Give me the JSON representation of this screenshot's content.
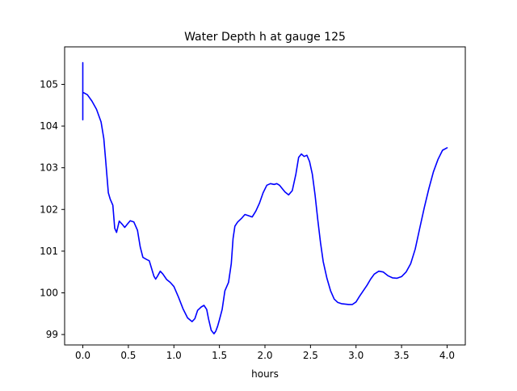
{
  "chart_data": {
    "type": "line",
    "title": "Water Depth h at gauge 125",
    "xlabel": "hours",
    "ylabel": "",
    "xlim": [
      -0.2,
      4.2
    ],
    "ylim": [
      98.75,
      105.9
    ],
    "xticks": [
      0.0,
      0.5,
      1.0,
      1.5,
      2.0,
      2.5,
      3.0,
      3.5,
      4.0
    ],
    "xtick_labels": [
      "0.0",
      "0.5",
      "1.0",
      "1.5",
      "2.0",
      "2.5",
      "3.0",
      "3.5",
      "4.0"
    ],
    "yticks": [
      99,
      100,
      101,
      102,
      103,
      104,
      105
    ],
    "ytick_labels": [
      "99",
      "100",
      "101",
      "102",
      "103",
      "104",
      "105"
    ],
    "grid": false,
    "series": [
      {
        "color": "#0000ff",
        "x": [
          0.0,
          0.0,
          0.0,
          0.0,
          0.01,
          0.05,
          0.1,
          0.15,
          0.2,
          0.23,
          0.25,
          0.28,
          0.3,
          0.33,
          0.35,
          0.37,
          0.4,
          0.43,
          0.46,
          0.49,
          0.52,
          0.56,
          0.6,
          0.63,
          0.66,
          0.7,
          0.73,
          0.76,
          0.78,
          0.8,
          0.82,
          0.85,
          0.88,
          0.92,
          0.96,
          1.0,
          1.05,
          1.1,
          1.15,
          1.2,
          1.23,
          1.26,
          1.3,
          1.33,
          1.36,
          1.38,
          1.41,
          1.44,
          1.46,
          1.48,
          1.5,
          1.53,
          1.56,
          1.6,
          1.63,
          1.65,
          1.67,
          1.7,
          1.74,
          1.78,
          1.82,
          1.86,
          1.9,
          1.94,
          1.98,
          2.02,
          2.06,
          2.1,
          2.13,
          2.16,
          2.19,
          2.22,
          2.26,
          2.3,
          2.34,
          2.37,
          2.4,
          2.43,
          2.46,
          2.49,
          2.52,
          2.55,
          2.58,
          2.61,
          2.64,
          2.68,
          2.72,
          2.76,
          2.8,
          2.84,
          2.88,
          2.92,
          2.96,
          3.0,
          3.04,
          3.08,
          3.12,
          3.16,
          3.2,
          3.25,
          3.3,
          3.35,
          3.4,
          3.45,
          3.5,
          3.55,
          3.6,
          3.65,
          3.7,
          3.75,
          3.8,
          3.85,
          3.9,
          3.95,
          4.0
        ],
        "y": [
          104.15,
          105.52,
          104.15,
          104.8,
          104.8,
          104.75,
          104.6,
          104.4,
          104.1,
          103.7,
          103.2,
          102.4,
          102.25,
          102.1,
          101.55,
          101.45,
          101.72,
          101.65,
          101.57,
          101.65,
          101.73,
          101.7,
          101.5,
          101.1,
          100.85,
          100.8,
          100.77,
          100.55,
          100.4,
          100.33,
          100.4,
          100.52,
          100.45,
          100.32,
          100.25,
          100.15,
          99.9,
          99.62,
          99.4,
          99.31,
          99.38,
          99.58,
          99.66,
          99.7,
          99.6,
          99.38,
          99.1,
          99.02,
          99.08,
          99.2,
          99.35,
          99.6,
          100.05,
          100.25,
          100.7,
          101.3,
          101.6,
          101.7,
          101.78,
          101.88,
          101.85,
          101.82,
          101.96,
          102.15,
          102.4,
          102.58,
          102.62,
          102.6,
          102.62,
          102.58,
          102.5,
          102.42,
          102.35,
          102.45,
          102.85,
          103.25,
          103.33,
          103.27,
          103.3,
          103.15,
          102.85,
          102.35,
          101.75,
          101.2,
          100.75,
          100.35,
          100.05,
          99.85,
          99.77,
          99.74,
          99.73,
          99.72,
          99.72,
          99.78,
          99.92,
          100.05,
          100.18,
          100.33,
          100.45,
          100.52,
          100.5,
          100.41,
          100.36,
          100.35,
          100.39,
          100.5,
          100.7,
          101.05,
          101.55,
          102.05,
          102.5,
          102.9,
          103.2,
          103.42,
          103.48
        ]
      }
    ]
  }
}
